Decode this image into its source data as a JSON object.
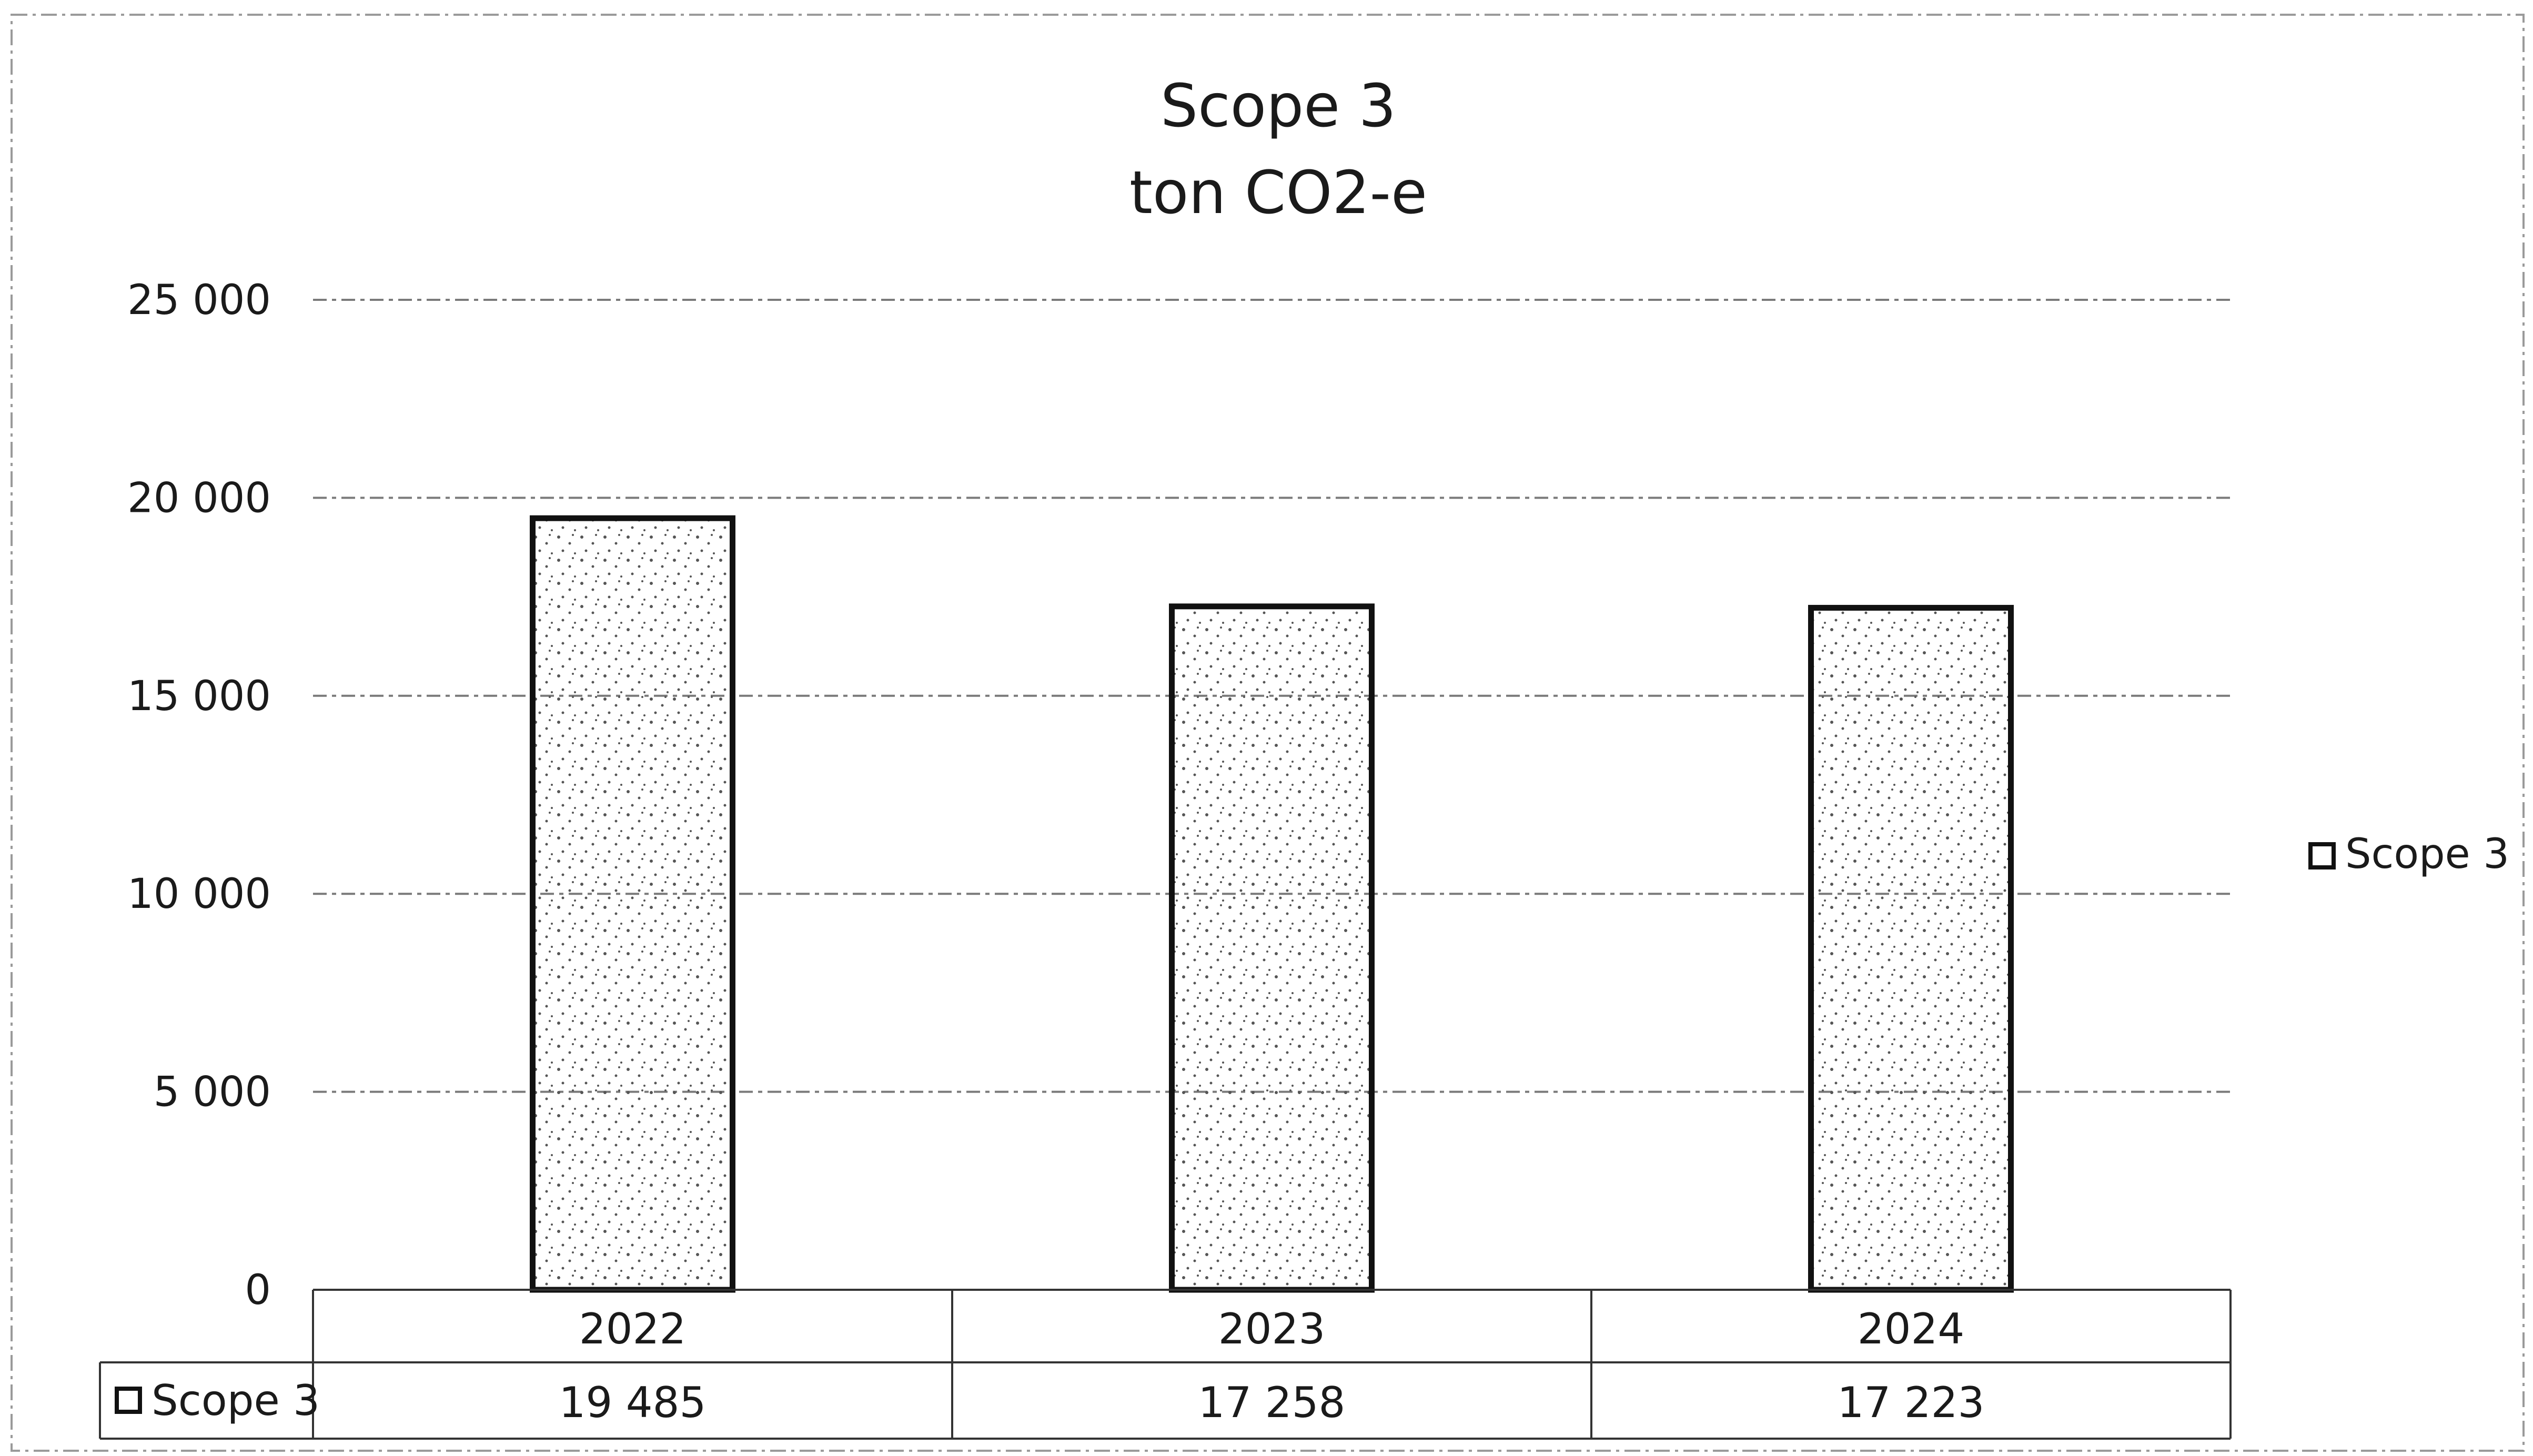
{
  "chart_data": {
    "type": "bar",
    "title": "Scope 3",
    "subtitle": "ton CO2-e",
    "categories": [
      "2022",
      "2023",
      "2024"
    ],
    "series": [
      {
        "name": "Scope 3",
        "values": [
          19485,
          17258,
          17223
        ],
        "value_labels": [
          "19 485",
          "17 258",
          "17 223"
        ]
      }
    ],
    "yticks": [
      {
        "value": 0,
        "label": "0"
      },
      {
        "value": 5000,
        "label": "5 000"
      },
      {
        "value": 10000,
        "label": "10 000"
      },
      {
        "value": 15000,
        "label": "15 000"
      },
      {
        "value": 20000,
        "label": "20 000"
      },
      {
        "value": 25000,
        "label": "25 000"
      }
    ],
    "ylim": [
      0,
      25000
    ],
    "grid": true,
    "legend_position": "right",
    "data_table": true,
    "colors": {
      "bar_fill": "#ffffff",
      "bar_stroke": "#111111",
      "stipple": "#555555",
      "grid": "#7a7a7a",
      "text": "#1a1a1a"
    }
  }
}
